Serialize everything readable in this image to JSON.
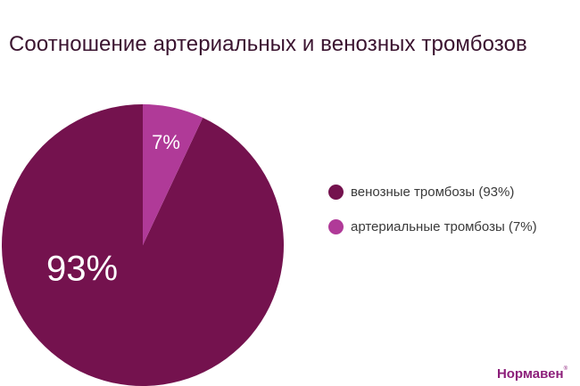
{
  "brand": {
    "name": "Нормавен",
    "mark": "®"
  },
  "chart_data": {
    "type": "pie",
    "title": "Соотношение артериальных и венозных тромбозов",
    "legend_position": "right",
    "slices": [
      {
        "name": "венозные тромбозы",
        "legend_label": "венозные тромбозы  (93%)",
        "value": 93,
        "label": "93%",
        "color": "#74124e"
      },
      {
        "name": "артериальные тромбозы",
        "legend_label": "артериальные тромбозы (7%)",
        "value": 7,
        "label": "7%",
        "color": "#b03a98"
      }
    ]
  }
}
